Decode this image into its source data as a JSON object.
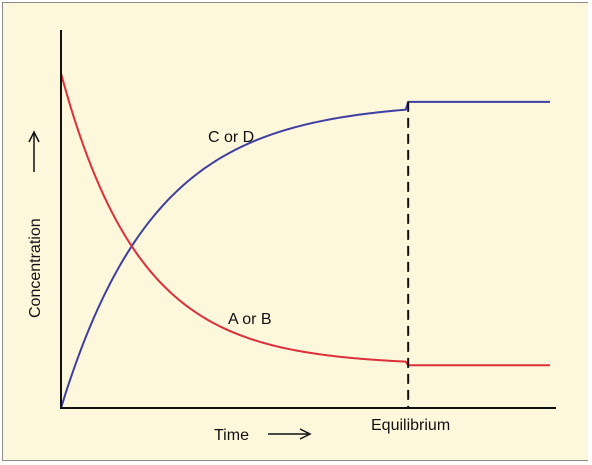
{
  "chart_data": {
    "type": "line",
    "xlabel": "Time",
    "ylabel": "Concentration",
    "equilibrium_label": "Equilibrium",
    "grid": false,
    "colors": {
      "background": "#fdf8dc",
      "axis": "#111111",
      "reactants": "#dd2f3a",
      "products": "#3f3fa3"
    },
    "series": [
      {
        "name": "C or D",
        "color": "#3f3fa3",
        "start": 0.0,
        "end": 0.86,
        "rate": 5.2
      },
      {
        "name": "A or B",
        "color": "#dd2f3a",
        "start": 0.94,
        "end": 0.12,
        "rate": 6.2
      }
    ],
    "equilibrium_x": 0.71,
    "xlim": [
      0,
      1
    ],
    "ylim": [
      0,
      1
    ]
  }
}
